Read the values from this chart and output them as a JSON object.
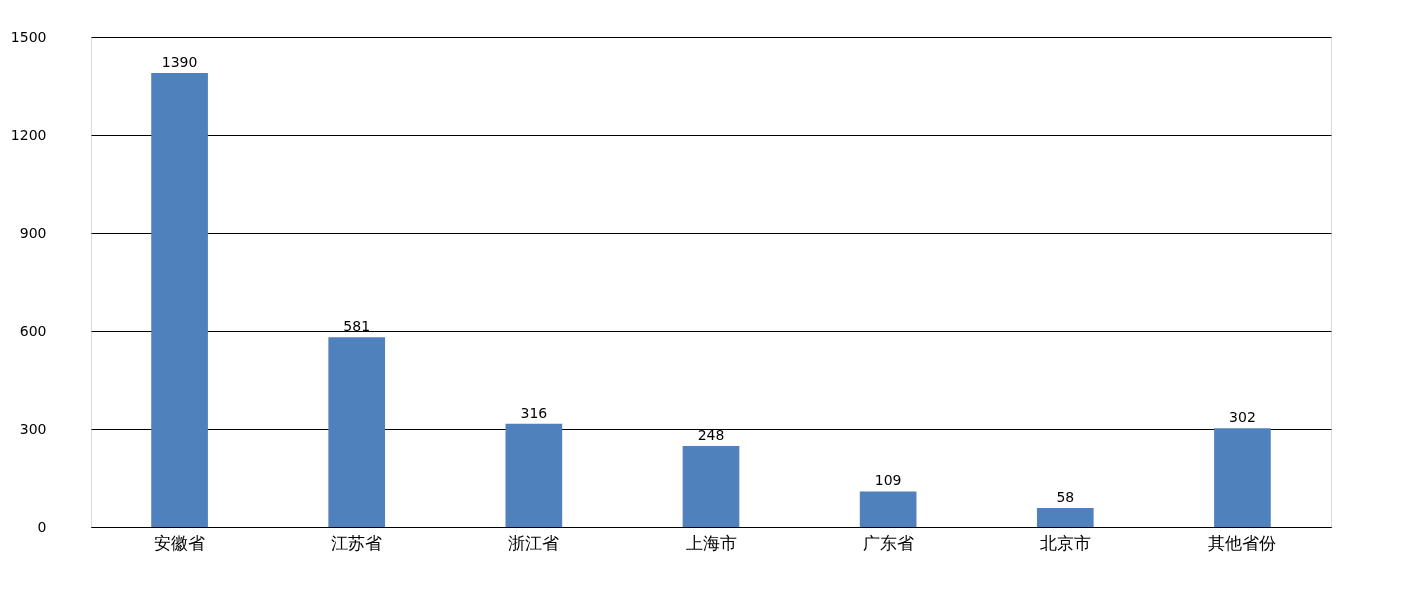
{
  "chart_data": {
    "type": "bar",
    "categories": [
      "安徽省",
      "江苏省",
      "浙江省",
      "上海市",
      "广东省",
      "北京市",
      "其他省份"
    ],
    "values": [
      1390,
      581,
      316,
      248,
      109,
      58,
      302
    ],
    "color": "#4f81bd",
    "ylim": [
      0,
      1500
    ],
    "yticks": [
      0,
      300,
      600,
      900,
      1200,
      1500
    ],
    "grid": "y",
    "data_labels": true
  }
}
